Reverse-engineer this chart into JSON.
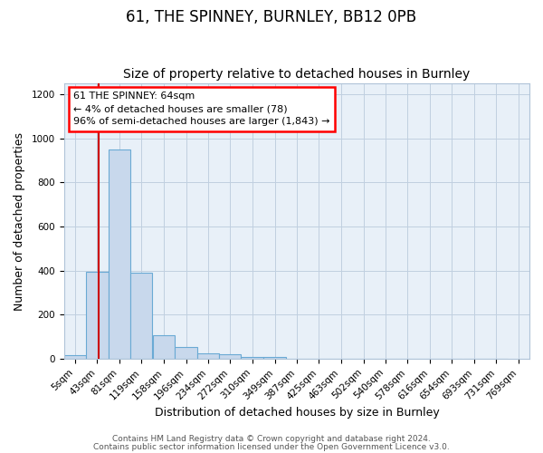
{
  "title": "61, THE SPINNEY, BURNLEY, BB12 0PB",
  "subtitle": "Size of property relative to detached houses in Burnley",
  "xlabel": "Distribution of detached houses by size in Burnley",
  "ylabel": "Number of detached properties",
  "bin_labels": [
    "5sqm",
    "43sqm",
    "81sqm",
    "119sqm",
    "158sqm",
    "196sqm",
    "234sqm",
    "272sqm",
    "310sqm",
    "349sqm",
    "387sqm",
    "425sqm",
    "463sqm",
    "502sqm",
    "540sqm",
    "578sqm",
    "616sqm",
    "654sqm",
    "693sqm",
    "731sqm",
    "769sqm"
  ],
  "bin_left_edges": [
    5,
    43,
    81,
    119,
    158,
    196,
    234,
    272,
    310,
    349,
    387,
    425,
    463,
    502,
    540,
    578,
    616,
    654,
    693,
    731,
    769
  ],
  "bin_width": 38,
  "bar_heights": [
    15,
    395,
    950,
    390,
    105,
    55,
    25,
    20,
    10,
    8,
    0,
    0,
    0,
    0,
    0,
    0,
    0,
    0,
    0,
    0
  ],
  "bar_color": "#c8d8ec",
  "bar_edge_color": "#6aaad4",
  "red_line_x": 64,
  "annotation_line1": "61 THE SPINNEY: 64sqm",
  "annotation_line2": "← 4% of detached houses are smaller (78)",
  "annotation_line3": "96% of semi-detached houses are larger (1,843) →",
  "red_line_color": "#cc0000",
  "ylim_max": 1250,
  "yticks": [
    0,
    200,
    400,
    600,
    800,
    1000,
    1200
  ],
  "footer_line1": "Contains HM Land Registry data © Crown copyright and database right 2024.",
  "footer_line2": "Contains public sector information licensed under the Open Government Licence v3.0.",
  "bg_color": "#ffffff",
  "plot_bg_color": "#e8f0f8",
  "grid_color": "#c0cfe0",
  "spine_color": "#b0c4d8",
  "title_fontsize": 12,
  "subtitle_fontsize": 10,
  "axis_label_fontsize": 9,
  "tick_fontsize": 7.5,
  "annotation_fontsize": 8,
  "footer_fontsize": 6.5
}
